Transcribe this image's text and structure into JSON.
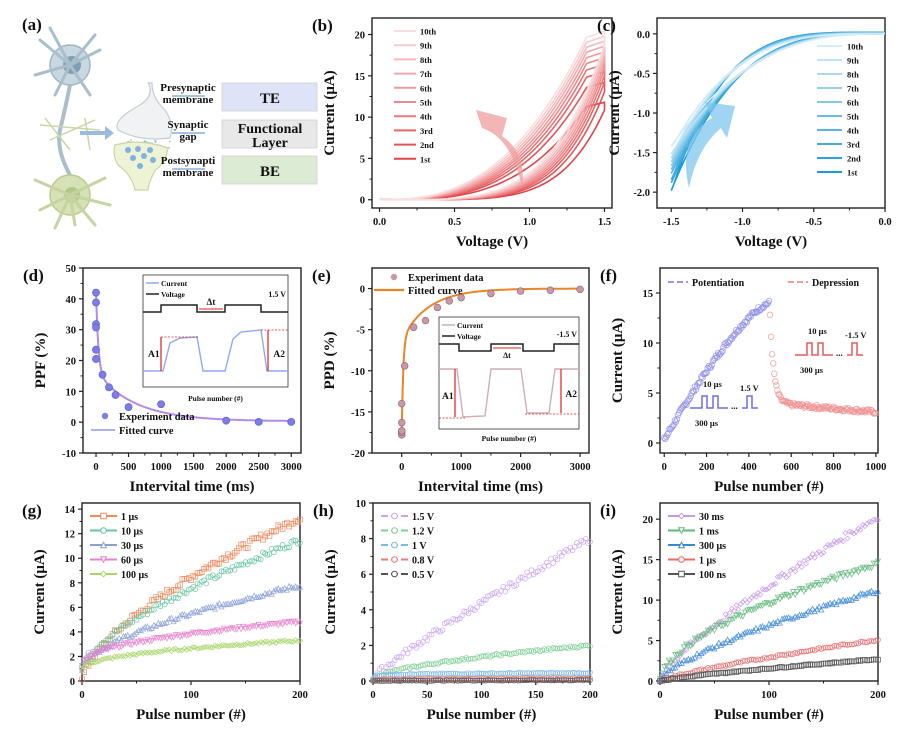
{
  "panel_a": {
    "label": "(a)",
    "rows": [
      {
        "side": [
          "Presynaptic",
          "membrane"
        ],
        "box": [
          "TE"
        ],
        "color": "#dfe3f7"
      },
      {
        "side": [
          "Synaptic",
          "gap"
        ],
        "box": [
          "Functional",
          "Layer"
        ],
        "color": "#e8e8e8"
      },
      {
        "side": [
          "Postsynapti",
          "membrane"
        ],
        "box": [
          "BE"
        ],
        "color": "#dcebd3"
      }
    ]
  },
  "chart_data": [
    {
      "id": "b",
      "label": "(b)",
      "type": "line",
      "xlabel": "Voltage (V)",
      "ylabel": "Current (μA)",
      "xlim": [
        -0.05,
        1.55
      ],
      "ylim": [
        -1,
        22
      ],
      "xticks": [
        0.0,
        0.5,
        1.0,
        1.5
      ],
      "xtick_labels": [
        "0.0",
        "0.5",
        "1.0",
        "1.5"
      ],
      "yticks": [
        0,
        5,
        10,
        15,
        20
      ],
      "ytick_labels": [
        "0",
        "5",
        "10",
        "15",
        "20"
      ],
      "color": "#e03a3e",
      "legend": [
        "10th",
        "9th",
        "8th",
        "7th",
        "6th",
        "5th",
        "4th",
        "3rd",
        "2nd",
        "1st"
      ],
      "legend_position": "top-left",
      "series": [
        {
          "name": "1st",
          "max_current": 11.8
        },
        {
          "name": "2nd",
          "max_current": 14.2
        },
        {
          "name": "3rd",
          "max_current": 15.5
        },
        {
          "name": "4th",
          "max_current": 16.4
        },
        {
          "name": "5th",
          "max_current": 17.2
        },
        {
          "name": "6th",
          "max_current": 17.9
        },
        {
          "name": "7th",
          "max_current": 18.6
        },
        {
          "name": "8th",
          "max_current": 19.2
        },
        {
          "name": "9th",
          "max_current": 19.8
        },
        {
          "name": "10th",
          "max_current": 20.4
        }
      ],
      "annotation": "arrow indicating increasing current with cycle"
    },
    {
      "id": "c",
      "label": "(c)",
      "type": "line",
      "xlabel": "Voltage (V)",
      "ylabel": "Current (μA)",
      "xlim": [
        -1.6,
        0.0
      ],
      "ylim": [
        -2.2,
        0.2
      ],
      "xticks": [
        -1.5,
        -1.0,
        -0.5,
        0.0
      ],
      "xtick_labels": [
        "-1.5",
        "-1.0",
        "-0.5",
        "0.0"
      ],
      "yticks": [
        0.0,
        -0.5,
        -1.0,
        -1.5,
        -2.0
      ],
      "ytick_labels": [
        "0.0",
        "-0.5",
        "-1.0",
        "-1.5",
        "-2.0"
      ],
      "color": "#1a9ad6",
      "legend": [
        "10th",
        "9th",
        "8th",
        "7th",
        "6th",
        "5th",
        "4th",
        "3rd",
        "2nd",
        "1st"
      ],
      "legend_position": "right",
      "series": [
        {
          "name": "1st",
          "min_current": -2.02
        },
        {
          "name": "2nd",
          "min_current": -1.92
        },
        {
          "name": "3rd",
          "min_current": -1.88
        },
        {
          "name": "4th",
          "min_current": -1.8
        },
        {
          "name": "5th",
          "min_current": -1.75
        },
        {
          "name": "6th",
          "min_current": -1.7
        },
        {
          "name": "7th",
          "min_current": -1.65
        },
        {
          "name": "8th",
          "min_current": -1.6
        },
        {
          "name": "9th",
          "min_current": -1.55
        },
        {
          "name": "10th",
          "min_current": -1.45
        }
      ],
      "annotation": "arrow indicating decreasing magnitude with cycle"
    },
    {
      "id": "d",
      "label": "(d)",
      "type": "scatter",
      "xlabel": "Intervital time (ms)",
      "ylabel": "PPF (%)",
      "xlim": [
        -200,
        3150
      ],
      "ylim": [
        -10,
        50
      ],
      "xticks": [
        0,
        500,
        1000,
        1500,
        2000,
        2500,
        3000
      ],
      "xtick_labels": [
        "0",
        "500",
        "1000",
        "1500",
        "2000",
        "2500",
        "3000"
      ],
      "yticks": [
        -10,
        0,
        10,
        20,
        30,
        40,
        50
      ],
      "ytick_labels": [
        "-10",
        "0",
        "10",
        "20",
        "30",
        "40",
        "50"
      ],
      "series": [
        {
          "name": "Experiment data",
          "kind": "points",
          "color": "#7d7de8",
          "x": [
            0,
            0,
            0,
            0,
            0,
            0,
            100,
            200,
            300,
            500,
            1000,
            2000,
            2500,
            3000
          ],
          "y": [
            42,
            38.8,
            31.8,
            30.7,
            23.5,
            20.5,
            15.4,
            11.3,
            8.8,
            4.9,
            5.8,
            0.5,
            0.1,
            0.1
          ]
        },
        {
          "name": "Fitted curve",
          "kind": "line",
          "color": "#b38be8",
          "A1": 26,
          "t1": 35,
          "A2": 16,
          "t2": 600
        }
      ],
      "legend_position": "bottom-left",
      "inset": {
        "legend": [
          "Current",
          "Voltage"
        ],
        "xlabel": "Pulse number (#)",
        "voltage_label": "1.5 V",
        "interval_label": "Δt",
        "a1_label": "A1",
        "a2_label": "A2"
      }
    },
    {
      "id": "e",
      "label": "(e)",
      "type": "scatter",
      "xlabel": "Intervital time (ms)",
      "ylabel": "PPD (%)",
      "xlim": [
        -500,
        3150
      ],
      "ylim": [
        -20,
        2.5
      ],
      "xticks": [
        0,
        1000,
        2000,
        3000
      ],
      "xtick_labels": [
        "0",
        "1000",
        "2000",
        "3000"
      ],
      "yticks": [
        -20,
        -15,
        -10,
        -5,
        0
      ],
      "ytick_labels": [
        "-20",
        "-15",
        "-10",
        "-5",
        "0"
      ],
      "series": [
        {
          "name": "Experiment data",
          "kind": "points",
          "color": "#b07a88",
          "x": [
            0,
            0,
            0,
            0,
            0,
            50,
            200,
            400,
            600,
            800,
            1000,
            1500,
            2000,
            2500,
            3000
          ],
          "y": [
            -17.8,
            -17.5,
            -17.3,
            -16.3,
            -14,
            -9.4,
            -4.7,
            -3.9,
            -2.3,
            -1.5,
            -1.1,
            -0.6,
            -0.3,
            -0.2,
            -0.1
          ]
        },
        {
          "name": "Fitted curve",
          "kind": "line",
          "color": "#e8862a",
          "A1": -11.5,
          "t1": 25,
          "A2": -6.2,
          "t2": 450
        }
      ],
      "legend_position": "top-left",
      "inset": {
        "legend": [
          "Current",
          "Voltage"
        ],
        "xlabel": "Pulse number (#)",
        "voltage_label": "-1.5 V",
        "interval_label": "Δt",
        "a1_label": "A1",
        "a2_label": "A2"
      }
    },
    {
      "id": "f",
      "label": "(f)",
      "type": "scatter",
      "xlabel": "Pulse number (#)",
      "ylabel": "Current (μA)",
      "xlim": [
        -20,
        1010
      ],
      "ylim": [
        -1,
        17.5
      ],
      "xticks": [
        0,
        200,
        400,
        600,
        800,
        1000
      ],
      "xtick_labels": [
        "0",
        "200",
        "400",
        "600",
        "800",
        "1000"
      ],
      "yticks": [
        0,
        5,
        10,
        15
      ],
      "ytick_labels": [
        "0",
        "5",
        "10",
        "15"
      ],
      "series": [
        {
          "name": "Potentiation",
          "color": "#8c8ce8",
          "x_range": [
            0,
            495
          ],
          "start": 0.3,
          "end": 14.0
        },
        {
          "name": "Depression",
          "color": "#ee8f8f",
          "x_range": [
            500,
            1000
          ],
          "start": 12.8,
          "plateau": 4.0,
          "end": 3.0
        }
      ],
      "legend_position": "top",
      "potentiation_pulse": {
        "width": "10 μs",
        "interval": "300 μs",
        "amplitude": "1.5 V"
      },
      "depression_pulse": {
        "width": "10 μs",
        "interval": "300 μs",
        "amplitude": "-1.5 V"
      }
    },
    {
      "id": "g",
      "label": "(g)",
      "type": "line",
      "xlabel": "Pulse number (#)",
      "ylabel": "Current (μA)",
      "xlim": [
        0,
        200
      ],
      "ylim": [
        0,
        14.5
      ],
      "xticks": [
        0,
        100,
        200
      ],
      "xtick_labels": [
        "0",
        "100",
        "200"
      ],
      "yticks": [
        0,
        2,
        4,
        6,
        8,
        10,
        12,
        14
      ],
      "ytick_labels": [
        "0",
        "2",
        "4",
        "6",
        "8",
        "10",
        "12",
        "14"
      ],
      "legend_position": "top-left",
      "series": [
        {
          "name": "1 μs",
          "color": "#f08a5d",
          "marker": "square",
          "start": 0,
          "end": 13.3,
          "shape": 0.65
        },
        {
          "name": "10 μs",
          "color": "#62c4a0",
          "marker": "circle",
          "start": 1.2,
          "end": 11.5,
          "shape": 0.7
        },
        {
          "name": "30 μs",
          "color": "#8a9fd6",
          "marker": "triangle",
          "start": 1.0,
          "end": 7.8,
          "shape": 0.6
        },
        {
          "name": "60 μs",
          "color": "#e880cc",
          "marker": "down-triangle",
          "start": 1.2,
          "end": 4.8,
          "shape": 0.45
        },
        {
          "name": "100 μs",
          "color": "#a8d66a",
          "marker": "diamond",
          "start": 0.9,
          "end": 3.3,
          "shape": 0.45
        }
      ]
    },
    {
      "id": "h",
      "label": "(h)",
      "type": "line",
      "xlabel": "Pulse number (#)",
      "ylabel": "Current (μA)",
      "xlim": [
        0,
        200
      ],
      "ylim": [
        0,
        10
      ],
      "xticks": [
        0,
        50,
        100,
        150,
        200
      ],
      "xtick_labels": [
        "0",
        "50",
        "100",
        "150",
        "200"
      ],
      "yticks": [
        0,
        2,
        4,
        6,
        8,
        10
      ],
      "ytick_labels": [
        "0",
        "2",
        "4",
        "6",
        "8",
        "10"
      ],
      "legend_position": "top-left",
      "series": [
        {
          "name": "1.5 V",
          "color": "#c9a6ef",
          "start": 0.2,
          "end": 8.0,
          "shape": 0.9
        },
        {
          "name": "1.2 V",
          "color": "#7fcf95",
          "start": 0.1,
          "end": 2.0,
          "shape": 0.6
        },
        {
          "name": "1 V",
          "color": "#7ab8ee",
          "start": 0.0,
          "end": 0.45,
          "shape": 0.1
        },
        {
          "name": "0.8 V",
          "color": "#ee7a7a",
          "start": 0.0,
          "end": 0.15,
          "shape": 0.2
        },
        {
          "name": "0.5 V",
          "color": "#555555",
          "start": 0.0,
          "end": 0.05,
          "shape": 0.5
        }
      ]
    },
    {
      "id": "i",
      "label": "(i)",
      "type": "line",
      "xlabel": "Pulse number (#)",
      "ylabel": "Current (μA)",
      "xlim": [
        0,
        200
      ],
      "ylim": [
        0,
        22
      ],
      "xticks": [
        0,
        100,
        200
      ],
      "xtick_labels": [
        "0",
        "100",
        "200"
      ],
      "yticks": [
        0,
        5,
        10,
        15,
        20
      ],
      "ytick_labels": [
        "0",
        "5",
        "10",
        "15",
        "20"
      ],
      "legend_position": "top-left",
      "series": [
        {
          "name": "30 ms",
          "color": "#c59ae8",
          "marker": "diamond",
          "start": 0.3,
          "end": 20.3,
          "shape": 0.8
        },
        {
          "name": "1 ms",
          "color": "#5fb87a",
          "marker": "down-triangle",
          "start": 0.2,
          "end": 14.5,
          "shape": 0.6
        },
        {
          "name": "300 μs",
          "color": "#3a86d8",
          "marker": "triangle",
          "start": 0,
          "end": 11.2,
          "shape": 0.7
        },
        {
          "name": "1 μs",
          "color": "#e86a6a",
          "marker": "circle",
          "start": 0,
          "end": 5.1,
          "shape": 0.8
        },
        {
          "name": "100 ns",
          "color": "#555555",
          "marker": "square",
          "start": 0,
          "end": 2.7,
          "shape": 0.8
        }
      ]
    }
  ]
}
